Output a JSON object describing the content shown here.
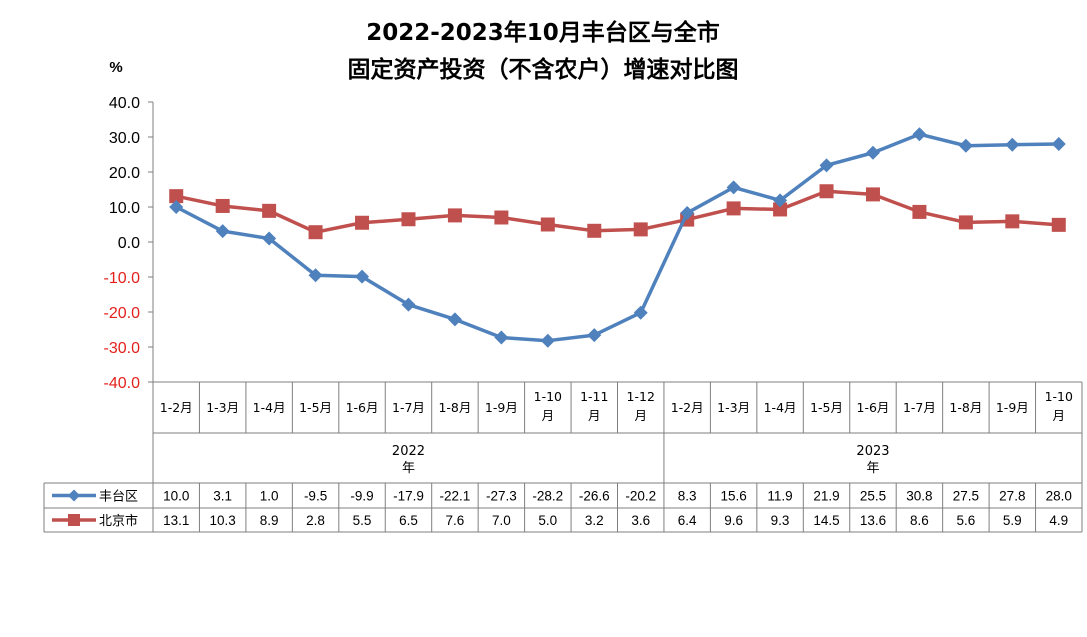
{
  "chart_data": {
    "type": "line",
    "title_line1": "2022-2023年10月丰台区与全市",
    "title_line2": "固定资产投资（不含农户）增速对比图",
    "ylabel": "%",
    "ylim": [
      -40,
      40
    ],
    "yticks": [
      "40.0",
      "30.0",
      "20.0",
      "10.0",
      "0.0",
      "-10.0",
      "-20.0",
      "-30.0",
      "-40.0"
    ],
    "ytick_values": [
      40,
      30,
      20,
      10,
      0,
      -10,
      -20,
      -30,
      -40
    ],
    "negative_tick_color": "#e3211c",
    "positive_tick_color": "#000000",
    "categories": [
      [
        "1-2月"
      ],
      [
        "1-3月"
      ],
      [
        "1-4月"
      ],
      [
        "1-5月"
      ],
      [
        "1-6月"
      ],
      [
        "1-7月"
      ],
      [
        "1-8月"
      ],
      [
        "1-9月"
      ],
      [
        "1-10",
        "月"
      ],
      [
        "1-11",
        "月"
      ],
      [
        "1-12",
        "月"
      ],
      [
        "1-2月"
      ],
      [
        "1-3月"
      ],
      [
        "1-4月"
      ],
      [
        "1-5月"
      ],
      [
        "1-6月"
      ],
      [
        "1-7月"
      ],
      [
        "1-8月"
      ],
      [
        "1-9月"
      ],
      [
        "1-10",
        "月"
      ]
    ],
    "year_groups": [
      {
        "label": [
          "2022",
          "年"
        ],
        "count": 11
      },
      {
        "label": [
          "2023",
          "年"
        ],
        "count": 9
      }
    ],
    "series": [
      {
        "name": "丰台区",
        "color": "#4f81bd",
        "marker": "diamond",
        "values": [
          10.0,
          3.1,
          1.0,
          -9.5,
          -9.9,
          -17.9,
          -22.1,
          -27.3,
          -28.2,
          -26.6,
          -20.2,
          8.3,
          15.6,
          11.9,
          21.9,
          25.5,
          30.8,
          27.5,
          27.8,
          28.0
        ],
        "labels": [
          "10.0",
          "3.1",
          "1.0",
          "-9.5",
          "-9.9",
          "-17.9",
          "-22.1",
          "-27.3",
          "-28.2",
          "-26.6",
          "-20.2",
          "8.3",
          "15.6",
          "11.9",
          "21.9",
          "25.5",
          "30.8",
          "27.5",
          "27.8",
          "28.0"
        ]
      },
      {
        "name": "北京市",
        "color": "#c0504d",
        "marker": "square",
        "values": [
          13.1,
          10.3,
          8.9,
          2.8,
          5.5,
          6.5,
          7.6,
          7.0,
          5.0,
          3.2,
          3.6,
          6.4,
          9.6,
          9.3,
          14.5,
          13.6,
          8.6,
          5.6,
          5.9,
          4.9
        ],
        "labels": [
          "13.1",
          "10.3",
          "8.9",
          "2.8",
          "5.5",
          "6.5",
          "7.6",
          "7.0",
          "5.0",
          "3.2",
          "3.6",
          "6.4",
          "9.6",
          "9.3",
          "14.5",
          "13.6",
          "8.6",
          "5.6",
          "5.9",
          "4.9"
        ]
      }
    ],
    "grid": false,
    "legend": "data-table-left"
  }
}
